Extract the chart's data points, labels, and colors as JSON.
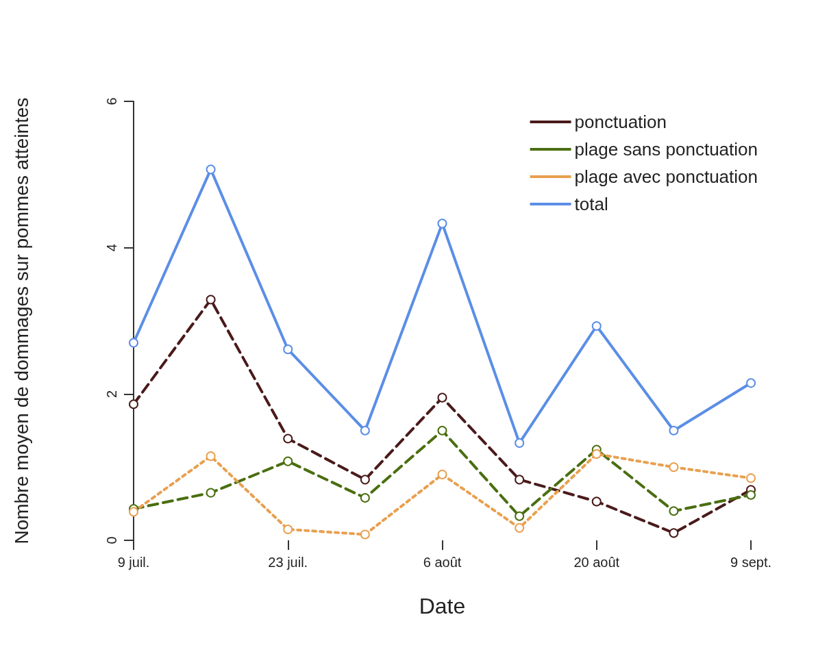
{
  "chart_data": {
    "type": "line",
    "xlabel": "Date",
    "ylabel": "Nombre moyen de dommages sur pommes atteintes",
    "categories": [
      "9 juil.",
      null,
      "23 juil.",
      null,
      "6 août",
      null,
      "20 août",
      null,
      "9 sept."
    ],
    "ylim": [
      0,
      6
    ],
    "yticks": [
      0,
      2,
      4,
      6
    ],
    "grid": false,
    "legend": "top right",
    "marker": "circle",
    "series": [
      {
        "name": "ponctuation",
        "color": "#4a1a1a",
        "line_style": "dashed",
        "values": [
          1.86,
          3.29,
          1.39,
          0.83,
          1.95,
          0.83,
          0.53,
          0.1,
          0.69
        ]
      },
      {
        "name": "plage sans ponctuation",
        "color": "#4a6e10",
        "line_style": "dashed",
        "values": [
          0.43,
          0.65,
          1.08,
          0.58,
          1.5,
          0.33,
          1.24,
          0.4,
          0.62
        ]
      },
      {
        "name": "plage avec ponctuation",
        "color": "#e8a050",
        "line_style": "dotted",
        "values": [
          0.39,
          1.15,
          0.15,
          0.08,
          0.9,
          0.17,
          1.18,
          1.0,
          0.85
        ]
      },
      {
        "name": "total",
        "color": "#5b8ee6",
        "line_style": "solid",
        "values": [
          2.7,
          5.07,
          2.61,
          1.5,
          4.33,
          1.33,
          2.93,
          1.5,
          2.15
        ]
      }
    ]
  }
}
